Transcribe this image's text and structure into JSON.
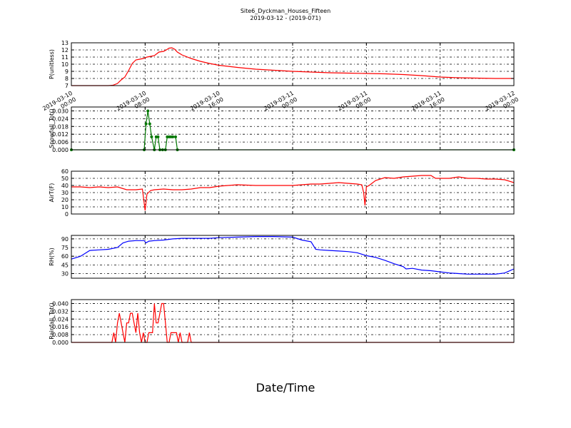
{
  "figure": {
    "title": "Site6_Dyckman_Houses_Fifteen",
    "subtitle": "2019-03-12 - (2019-071)",
    "xlabel": "Date/Time"
  },
  "chart_data": [
    {
      "type": "line",
      "ylabel": "P(unitless)",
      "ylim": [
        7,
        13
      ],
      "yticks": [
        "7",
        "8",
        "9",
        "10",
        "11",
        "12",
        "13"
      ],
      "xlim": [
        0,
        48
      ],
      "xticks": [
        "2019-03-10\n00:00",
        "2019-03-10\n08:00",
        "2019-03-10\n16:00",
        "2019-03-11\n00:00",
        "2019-03-11\n08:00",
        "2019-03-11\n16:00",
        "2019-03-12\n00:00"
      ],
      "grid": true,
      "series": [
        {
          "color": "#ff0000",
          "marker": false,
          "x": [
            0,
            1,
            2,
            3,
            4,
            4.5,
            5,
            5.4,
            5.8,
            6.2,
            6.6,
            7,
            7.4,
            7.8,
            8.2,
            8.6,
            9,
            9.5,
            10,
            10.3,
            10.6,
            10.9,
            11.2,
            11.5,
            12,
            13,
            14,
            15,
            16,
            18,
            20,
            22,
            24,
            26,
            28,
            30,
            32,
            34,
            36,
            38,
            40,
            42,
            44,
            46,
            48
          ],
          "y": [
            7,
            7,
            7,
            7,
            7,
            7.05,
            7.3,
            7.8,
            8.2,
            9.1,
            10.1,
            10.6,
            10.7,
            10.8,
            11.0,
            11.1,
            11.2,
            11.7,
            11.8,
            12.0,
            12.25,
            12.3,
            12.1,
            11.7,
            11.3,
            10.8,
            10.4,
            10.1,
            9.85,
            9.55,
            9.3,
            9.15,
            9.0,
            8.9,
            8.8,
            8.75,
            8.7,
            8.65,
            8.55,
            8.4,
            8.2,
            8.1,
            8.05,
            8.0,
            8.0
          ]
        }
      ]
    },
    {
      "type": "line",
      "ylabel": "Snowfall_Tot()",
      "ylim": [
        0,
        0.033
      ],
      "yticks": [
        "0.000",
        "0.006",
        "0.012",
        "0.018",
        "0.024",
        "0.030"
      ],
      "xlim": [
        0,
        48
      ],
      "xticks": [],
      "grid": true,
      "series": [
        {
          "color": "#007700",
          "marker": true,
          "x": [
            0,
            7.9,
            8.1,
            8.3,
            8.5,
            8.7,
            9.0,
            9.2,
            9.4,
            9.6,
            9.9,
            10.2,
            10.4,
            10.6,
            10.8,
            11.0,
            11.3,
            11.5,
            48
          ],
          "y": [
            0,
            0,
            0.02,
            0.03,
            0.02,
            0.01,
            0,
            0.01,
            0.01,
            0,
            0,
            0,
            0.01,
            0.01,
            0.01,
            0.01,
            0.01,
            0,
            0
          ]
        }
      ]
    },
    {
      "type": "line",
      "ylabel": "AirT(F)",
      "ylim": [
        0,
        60
      ],
      "yticks": [
        "0",
        "10",
        "20",
        "30",
        "40",
        "50",
        "60"
      ],
      "xlim": [
        0,
        48
      ],
      "xticks": [],
      "grid": true,
      "series": [
        {
          "color": "#ff0000",
          "marker": false,
          "x": [
            0,
            1,
            2,
            3,
            4,
            5,
            6,
            7,
            7.7,
            7.85,
            8.0,
            8.2,
            8.6,
            9,
            10,
            11,
            12,
            13,
            14,
            15,
            16,
            17,
            18,
            20,
            22,
            24,
            26,
            27,
            28,
            29,
            30,
            31,
            31.5,
            31.7,
            31.85,
            32.0,
            32.3,
            33,
            34,
            35,
            36,
            37,
            38,
            39,
            39.5,
            40,
            41,
            42,
            43,
            44,
            45,
            46,
            47,
            48
          ],
          "y": [
            38,
            38,
            37,
            38,
            37,
            38,
            34,
            34,
            35,
            20,
            5,
            28,
            33,
            34,
            35,
            34,
            34,
            35,
            37,
            37,
            39,
            40,
            41,
            40,
            40,
            40,
            42,
            42,
            43,
            44,
            43,
            42,
            41,
            30,
            12,
            38,
            40,
            47,
            51,
            50,
            52,
            53,
            54,
            54,
            50,
            50,
            50,
            52,
            50,
            50,
            49,
            49,
            48,
            44
          ]
        }
      ]
    },
    {
      "type": "line",
      "ylabel": "RH(%)",
      "ylim": [
        22,
        96
      ],
      "yticks": [
        "30",
        "45",
        "60",
        "75",
        "90"
      ],
      "xlim": [
        0,
        48
      ],
      "xticks": [],
      "grid": true,
      "series": [
        {
          "color": "#0000ff",
          "marker": false,
          "x": [
            0,
            1,
            2,
            3,
            4,
            5,
            5.6,
            6.2,
            7,
            7.9,
            8.1,
            8.4,
            9,
            10,
            11,
            12,
            13,
            14,
            15,
            16,
            18,
            20,
            22,
            24,
            25,
            26,
            26.5,
            27,
            28,
            29,
            30,
            31,
            32,
            33,
            34,
            35,
            36,
            36.3,
            37,
            38,
            39,
            40,
            41,
            42,
            43,
            44,
            45,
            46,
            47,
            48
          ],
          "y": [
            55,
            60,
            70,
            71,
            72,
            75,
            83,
            86,
            87,
            87,
            83,
            86,
            87,
            88,
            90,
            91,
            91,
            91,
            91,
            92,
            93,
            94,
            94,
            93,
            88,
            85,
            72,
            71,
            70,
            69,
            68,
            66,
            61,
            58,
            53,
            47,
            42,
            38,
            39,
            36,
            35,
            33,
            31,
            30,
            29,
            29,
            29,
            29,
            31,
            38
          ]
        }
      ]
    },
    {
      "type": "line",
      "ylabel": "Rainfall_Tot()",
      "ylim": [
        0,
        0.044
      ],
      "yticks": [
        "0.000",
        "0.008",
        "0.016",
        "0.024",
        "0.032",
        "0.040"
      ],
      "xlim": [
        0,
        48
      ],
      "xticks": [],
      "grid": true,
      "series": [
        {
          "color": "#ff0000",
          "marker": false,
          "x": [
            0,
            4.4,
            4.6,
            4.8,
            5.0,
            5.2,
            5.4,
            5.6,
            5.8,
            6.0,
            6.2,
            6.4,
            6.6,
            6.8,
            7.0,
            7.2,
            7.4,
            7.6,
            7.8,
            8.0,
            8.2,
            8.4,
            8.6,
            8.8,
            9.0,
            9.2,
            9.4,
            9.6,
            9.8,
            10.0,
            10.2,
            10.4,
            10.6,
            10.8,
            11.0,
            11.2,
            11.4,
            11.6,
            11.8,
            12.0,
            12.2,
            12.4,
            12.6,
            12.8,
            13.0,
            13.2,
            13.4,
            13.6,
            13.8,
            48
          ],
          "y": [
            0,
            0,
            0.01,
            0,
            0.02,
            0.03,
            0.02,
            0.01,
            0,
            0.02,
            0.02,
            0.03,
            0.03,
            0.02,
            0.01,
            0.03,
            0.01,
            0,
            0.01,
            0,
            0,
            0.01,
            0.01,
            0.01,
            0.04,
            0.02,
            0.02,
            0.03,
            0.04,
            0.04,
            0.02,
            0,
            0,
            0.01,
            0.01,
            0.01,
            0.01,
            0,
            0.01,
            0,
            0,
            0,
            0,
            0.01,
            0,
            0,
            0,
            0,
            0,
            0
          ]
        }
      ]
    }
  ]
}
